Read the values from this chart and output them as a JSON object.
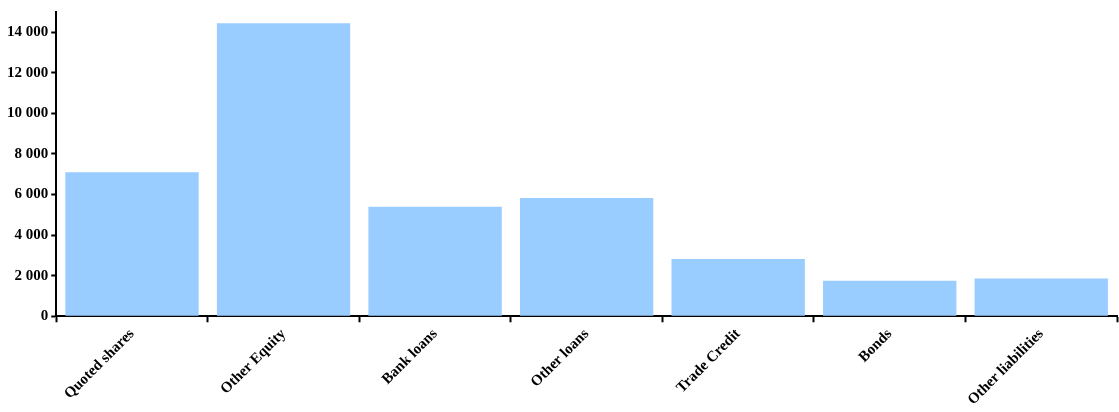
{
  "chart_data": {
    "type": "bar",
    "categories": [
      "Quoted shares",
      "Other Equity",
      "Bank loans",
      "Other loans",
      "Trade Credit",
      "Bonds",
      "Other liabilities"
    ],
    "values": [
      7100,
      14450,
      5400,
      5830,
      2820,
      1750,
      1860
    ],
    "color": "#99ccff",
    "ylim": [
      0,
      15000
    ],
    "yticks": [
      {
        "value": 0,
        "label": "0"
      },
      {
        "value": 2000,
        "label": "2 000"
      },
      {
        "value": 4000,
        "label": "4 000"
      },
      {
        "value": 6000,
        "label": "6 000"
      },
      {
        "value": 8000,
        "label": "8 000"
      },
      {
        "value": 10000,
        "label": "10 000"
      },
      {
        "value": 12000,
        "label": "12 000"
      },
      {
        "value": 14000,
        "label": "14 000"
      }
    ],
    "grid": false,
    "legend": false
  }
}
